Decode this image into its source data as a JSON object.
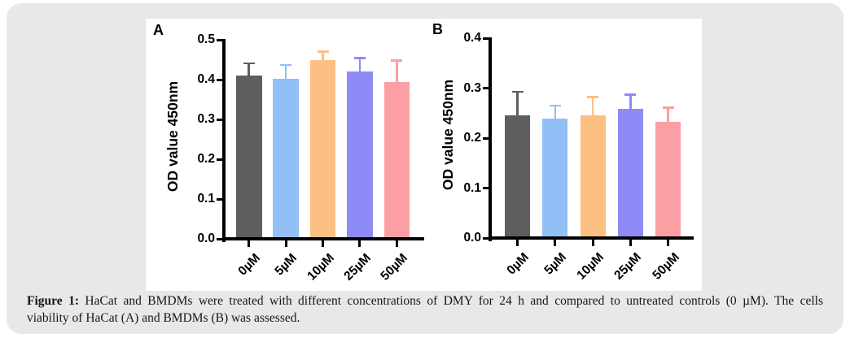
{
  "figure": {
    "caption": {
      "label": "Figure 1:",
      "line1_rest": " HaCat and BMDMs were treated with different concentrations of DMY for 24 h and compared to untreated controls (0 µM). The cells",
      "line2": "viability of HaCat (A) and BMDMs (B) was assessed."
    }
  },
  "colors": {
    "page_bg": "#ffffff",
    "panel_bg": "#e8e8e8",
    "chart_bg": "#ffffff",
    "axis": "#000000",
    "bar_colors": [
      "#5e5e5e",
      "#92c0f6",
      "#fdc083",
      "#8f8bf6",
      "#fb9fa4"
    ]
  },
  "chart_data": [
    {
      "type": "bar",
      "panel_label": "A",
      "title": "",
      "xlabel": "",
      "ylabel": "OD value 450nm",
      "categories": [
        "0µM",
        "5µM",
        "10µM",
        "25µM",
        "50µM"
      ],
      "values": [
        0.41,
        0.403,
        0.45,
        0.421,
        0.394
      ],
      "errors_upper": [
        0.031,
        0.034,
        0.021,
        0.033,
        0.054
      ],
      "ylim": [
        0,
        0.5
      ],
      "ytick_step": 0.1,
      "ytick_labels": [
        "0.0",
        "0.1",
        "0.2",
        "0.3",
        "0.4",
        "0.5"
      ],
      "grid": false,
      "legend": "none"
    },
    {
      "type": "bar",
      "panel_label": "B",
      "title": "",
      "xlabel": "",
      "ylabel": "OD value 450nm",
      "categories": [
        "0µM",
        "5µM",
        "10µM",
        "25µM",
        "50µM"
      ],
      "values": [
        0.245,
        0.239,
        0.245,
        0.258,
        0.233
      ],
      "errors_upper": [
        0.048,
        0.026,
        0.037,
        0.029,
        0.028
      ],
      "ylim": [
        0,
        0.4
      ],
      "ytick_step": 0.1,
      "ytick_labels": [
        "0.0",
        "0.1",
        "0.2",
        "0.3",
        "0.4"
      ],
      "grid": false,
      "legend": "none"
    }
  ]
}
